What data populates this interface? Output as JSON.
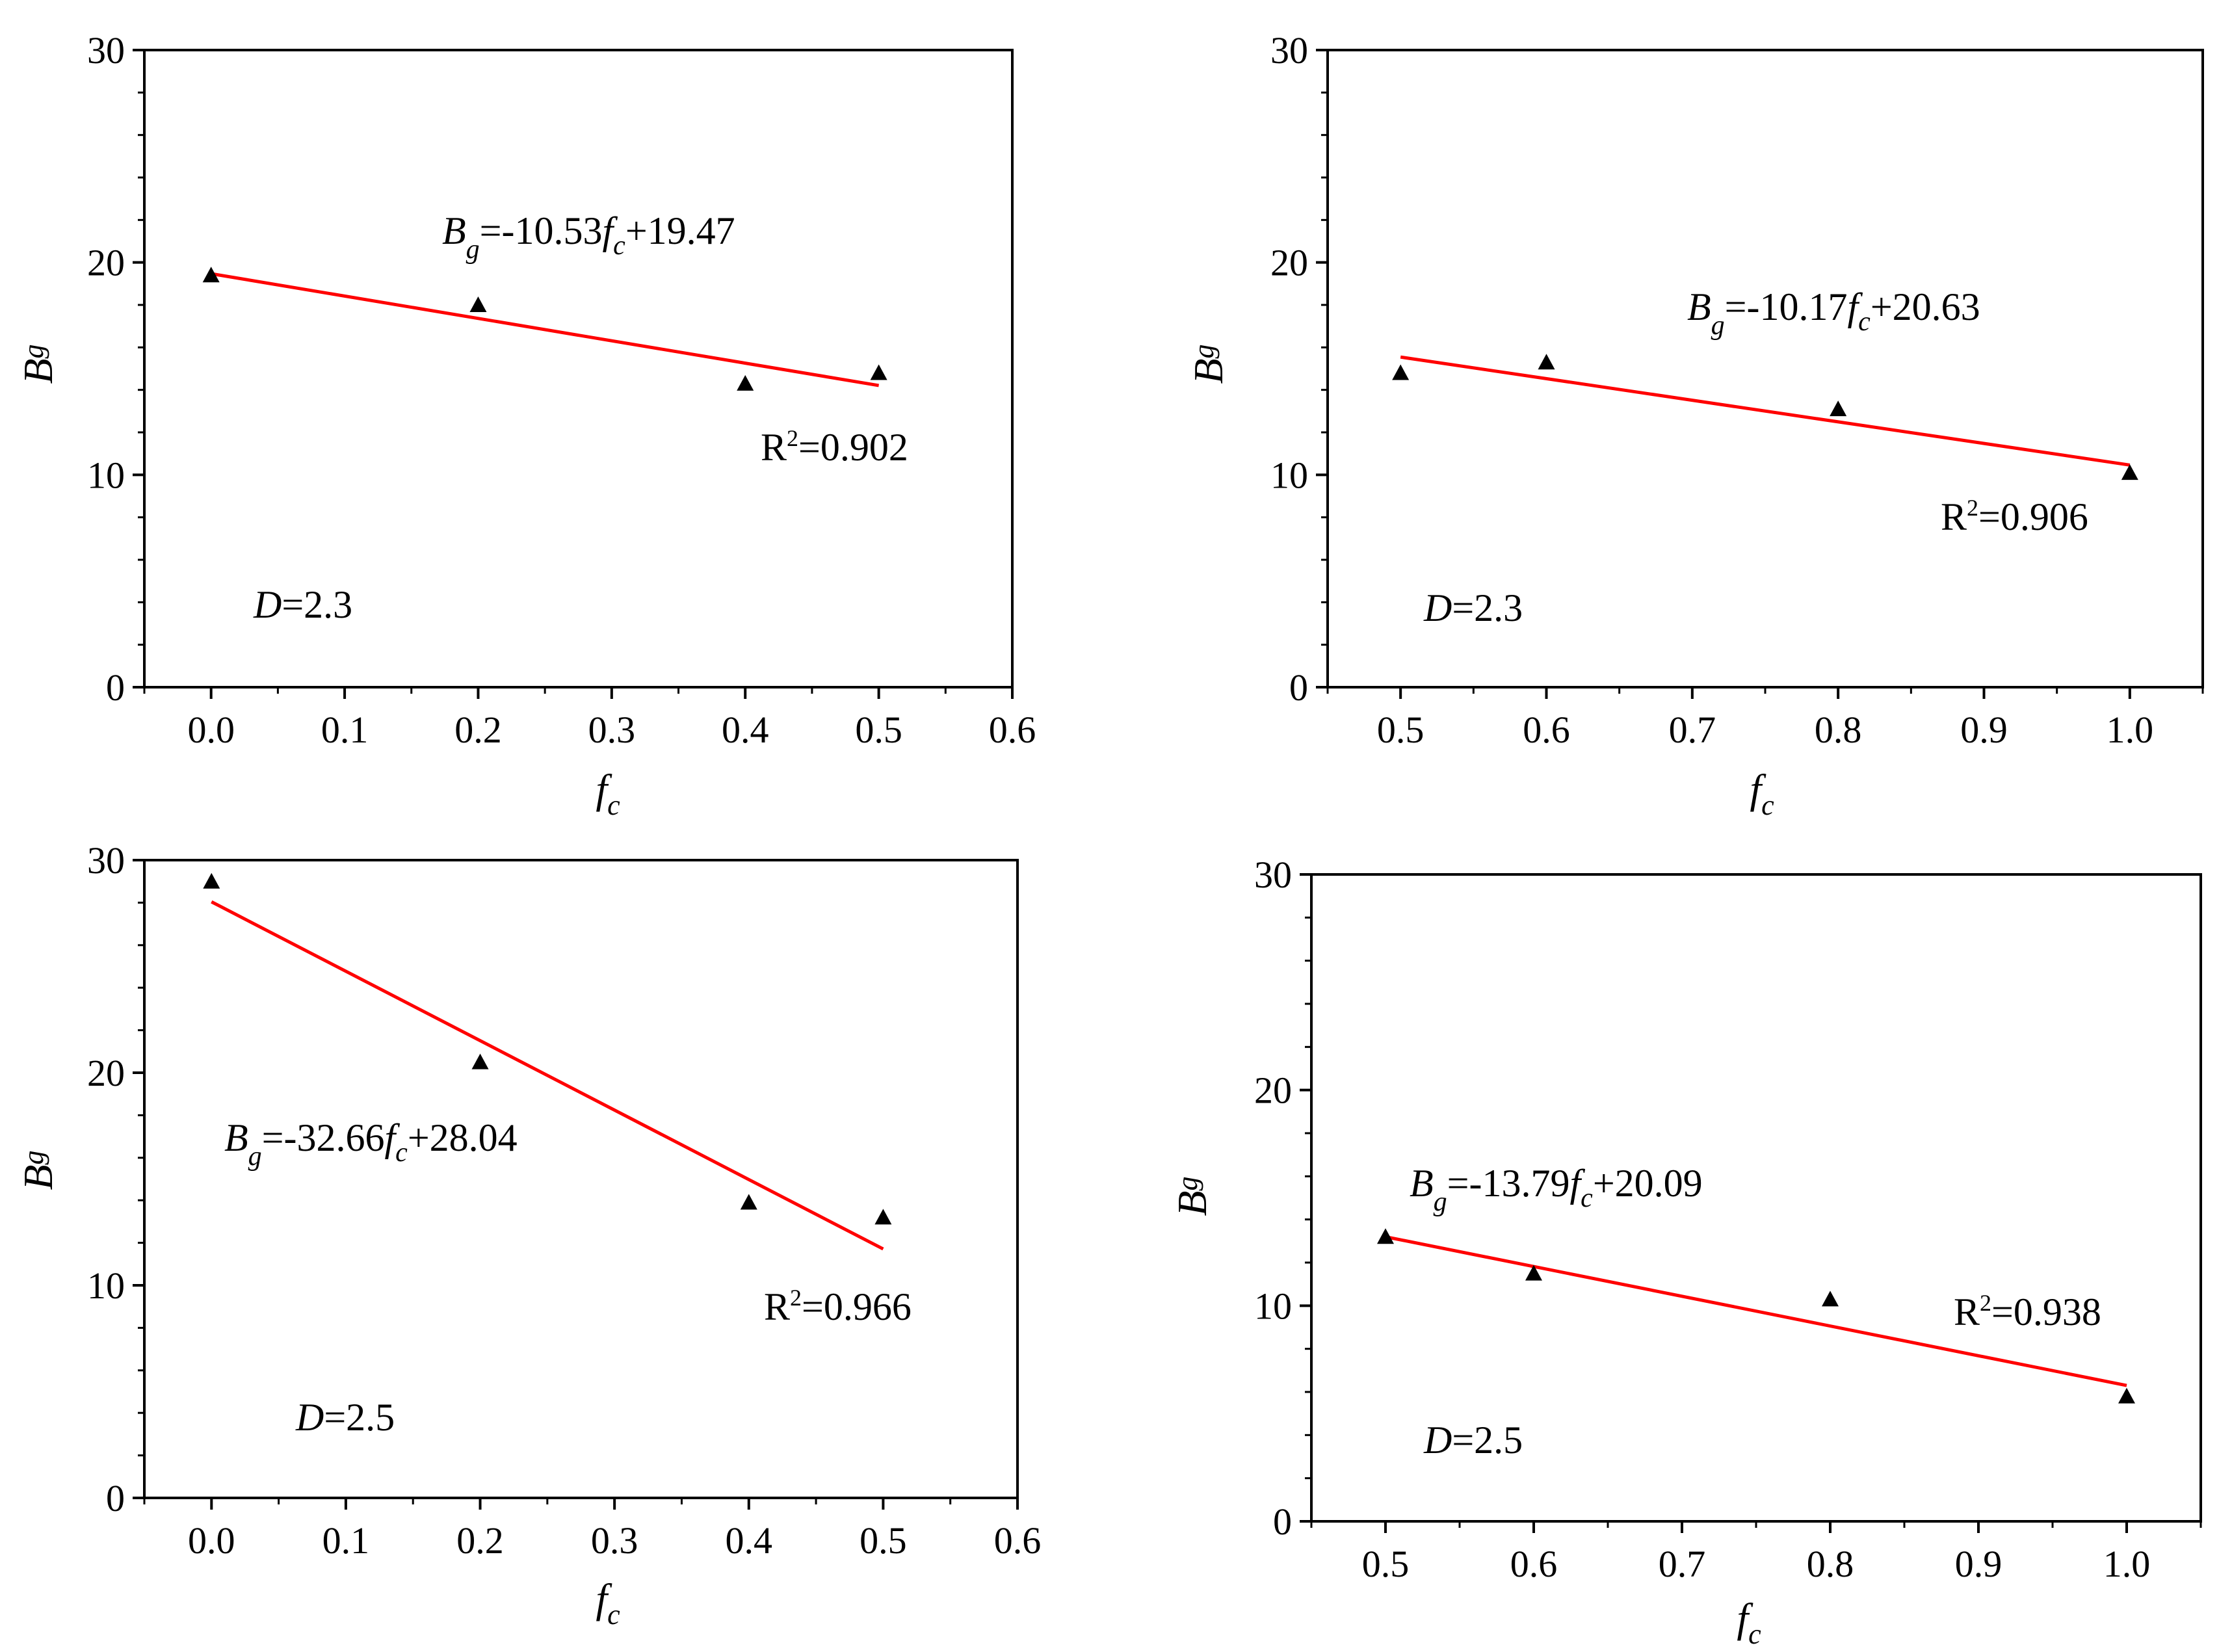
{
  "chart_data": [
    {
      "type": "scatter",
      "xlabel": "f",
      "xlabel_sub": "c",
      "ylabel": "B",
      "ylabel_sub": "g",
      "xlim": [
        -0.05,
        0.6
      ],
      "ylim": [
        0,
        30
      ],
      "xticks": [
        "0.0",
        "0.1",
        "0.2",
        "0.3",
        "0.4",
        "0.5",
        "0.6"
      ],
      "yticks": [
        "0",
        "10",
        "20",
        "30"
      ],
      "series": [
        {
          "name": "data",
          "x": [
            0.0,
            0.2,
            0.4,
            0.5
          ],
          "y": [
            19.4,
            18.0,
            14.3,
            14.8
          ]
        }
      ],
      "fit": {
        "slope": -10.53,
        "intercept": 19.47,
        "x_range": [
          0.0,
          0.5
        ]
      },
      "equation": {
        "lhs": "B",
        "lhs_sub": "g",
        "mid": "=-10.53",
        "var": "f",
        "var_sub": "c",
        "rhs": "+19.47"
      },
      "r2": {
        "pre": "R",
        "sup": "2",
        "post": "=0.902"
      },
      "d_label": {
        "var": "D",
        "val": "=2.3"
      }
    },
    {
      "type": "scatter",
      "xlabel": "f",
      "xlabel_sub": "c",
      "ylabel": "B",
      "ylabel_sub": "g",
      "xlim": [
        0.45,
        1.05
      ],
      "ylim": [
        0,
        30
      ],
      "xticks": [
        "0.5",
        "0.6",
        "0.7",
        "0.8",
        "0.9",
        "1.0"
      ],
      "yticks": [
        "0",
        "10",
        "20",
        "30"
      ],
      "series": [
        {
          "name": "data",
          "x": [
            0.5,
            0.6,
            0.8,
            1.0
          ],
          "y": [
            14.8,
            15.3,
            13.1,
            10.1
          ]
        }
      ],
      "fit": {
        "slope": -10.17,
        "intercept": 20.63,
        "x_range": [
          0.5,
          1.0
        ]
      },
      "equation": {
        "lhs": "B",
        "lhs_sub": "g",
        "mid": "=-10.17",
        "var": "f",
        "var_sub": "c",
        "rhs": "+20.63"
      },
      "r2": {
        "pre": "R",
        "sup": "2",
        "post": "=0.906"
      },
      "d_label": {
        "var": "D",
        "val": "=2.3"
      }
    },
    {
      "type": "scatter",
      "xlabel": "f",
      "xlabel_sub": "c",
      "ylabel": "B",
      "ylabel_sub": "g",
      "xlim": [
        -0.05,
        0.6
      ],
      "ylim": [
        0,
        30
      ],
      "xticks": [
        "0.0",
        "0.1",
        "0.2",
        "0.3",
        "0.4",
        "0.5",
        "0.6"
      ],
      "yticks": [
        "0",
        "10",
        "20",
        "30"
      ],
      "series": [
        {
          "name": "data",
          "x": [
            0.0,
            0.2,
            0.4,
            0.5
          ],
          "y": [
            29.0,
            20.5,
            13.9,
            13.2
          ]
        }
      ],
      "fit": {
        "slope": -32.66,
        "intercept": 28.04,
        "x_range": [
          0.0,
          0.5
        ]
      },
      "equation": {
        "lhs": "B",
        "lhs_sub": "g",
        "mid": "=-32.66",
        "var": "f",
        "var_sub": "c",
        "rhs": "+28.04"
      },
      "r2": {
        "pre": "R",
        "sup": "2",
        "post": "=0.966"
      },
      "d_label": {
        "var": "D",
        "val": "=2.5"
      }
    },
    {
      "type": "scatter",
      "xlabel": "f",
      "xlabel_sub": "c",
      "ylabel": "B",
      "ylabel_sub": "g",
      "xlim": [
        0.45,
        1.05
      ],
      "ylim": [
        0,
        30
      ],
      "xticks": [
        "0.5",
        "0.6",
        "0.7",
        "0.8",
        "0.9",
        "1.0"
      ],
      "yticks": [
        "0",
        "10",
        "20",
        "30"
      ],
      "series": [
        {
          "name": "data",
          "x": [
            0.5,
            0.6,
            0.8,
            1.0
          ],
          "y": [
            13.2,
            11.5,
            10.3,
            5.8
          ]
        }
      ],
      "fit": {
        "slope": -13.79,
        "intercept": 20.09,
        "x_range": [
          0.5,
          1.0
        ]
      },
      "equation": {
        "lhs": "B",
        "lhs_sub": "g",
        "mid": "=-13.79",
        "var": "f",
        "var_sub": "c",
        "rhs": "+20.09"
      },
      "r2": {
        "pre": "R",
        "sup": "2",
        "post": "=0.938"
      },
      "d_label": {
        "var": "D",
        "val": "=2.5"
      }
    }
  ]
}
